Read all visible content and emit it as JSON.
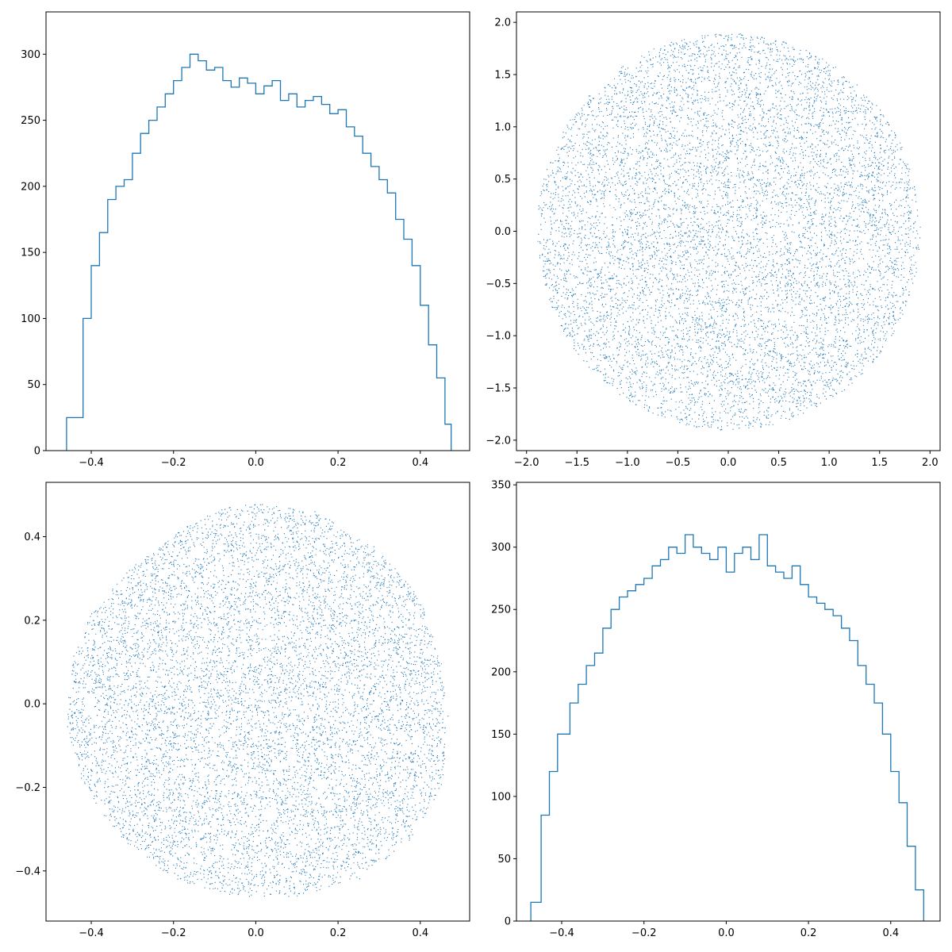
{
  "chart_data": [
    {
      "type": "step",
      "panel": "top-left",
      "title": "",
      "xlabel": "",
      "ylabel": "",
      "xlim": [
        -0.51,
        0.52
      ],
      "ylim": [
        0,
        332
      ],
      "xticks": [
        -0.4,
        -0.2,
        0.0,
        0.2,
        0.4
      ],
      "xtick_labels": [
        "−0.4",
        "−0.2",
        "0.0",
        "0.2",
        "0.4"
      ],
      "yticks": [
        0,
        50,
        100,
        150,
        200,
        250,
        300
      ],
      "ytick_labels": [
        "0",
        "50",
        "100",
        "150",
        "200",
        "250",
        "300"
      ],
      "color": "#1f77b4",
      "grid": false,
      "series": [
        {
          "x": [
            -0.46,
            -0.42,
            -0.4,
            -0.38,
            -0.36,
            -0.34,
            -0.32,
            -0.3,
            -0.28,
            -0.26,
            -0.24,
            -0.22,
            -0.2,
            -0.18,
            -0.16,
            -0.14,
            -0.12,
            -0.1,
            -0.08,
            -0.06,
            -0.04,
            -0.02,
            0.0,
            0.02,
            0.04,
            0.06,
            0.08,
            0.1,
            0.12,
            0.14,
            0.16,
            0.18,
            0.2,
            0.22,
            0.24,
            0.26,
            0.28,
            0.3,
            0.32,
            0.34,
            0.36,
            0.38,
            0.4,
            0.42,
            0.44,
            0.46,
            0.475
          ],
          "y": [
            25,
            100,
            140,
            165,
            190,
            200,
            205,
            225,
            240,
            250,
            260,
            270,
            280,
            290,
            300,
            295,
            288,
            290,
            280,
            275,
            282,
            278,
            270,
            276,
            280,
            265,
            270,
            260,
            265,
            268,
            262,
            255,
            258,
            245,
            238,
            225,
            215,
            205,
            195,
            175,
            160,
            140,
            110,
            80,
            55,
            20,
            0
          ]
        }
      ]
    },
    {
      "type": "scatter",
      "panel": "top-right",
      "title": "",
      "xlabel": "",
      "ylabel": "",
      "xlim": [
        -2.1,
        2.1
      ],
      "ylim": [
        -2.1,
        2.1
      ],
      "xticks": [
        -2.0,
        -1.5,
        -1.0,
        -0.5,
        0.0,
        0.5,
        1.0,
        1.5,
        2.0
      ],
      "xtick_labels": [
        "−2.0",
        "−1.5",
        "−1.0",
        "−0.5",
        "0.0",
        "0.5",
        "1.0",
        "1.5",
        "2.0"
      ],
      "yticks": [
        -2.0,
        -1.5,
        -1.0,
        -0.5,
        0.0,
        0.5,
        1.0,
        1.5,
        2.0
      ],
      "ytick_labels": [
        "−2.0",
        "−1.5",
        "−1.0",
        "−0.5",
        "0.0",
        "0.5",
        "1.0",
        "1.5",
        "2.0"
      ],
      "color": "#1f77b4",
      "grid": false,
      "shape": "uniform disk",
      "center": [
        0.0,
        0.0
      ],
      "radius": 1.9,
      "n_points": 9000
    },
    {
      "type": "scatter",
      "panel": "bottom-left",
      "title": "",
      "xlabel": "",
      "ylabel": "",
      "xlim": [
        -0.51,
        0.52
      ],
      "ylim": [
        -0.52,
        0.53
      ],
      "xticks": [
        -0.4,
        -0.2,
        0.0,
        0.2,
        0.4
      ],
      "xtick_labels": [
        "−0.4",
        "−0.2",
        "0.0",
        "0.2",
        "0.4"
      ],
      "yticks": [
        -0.4,
        -0.2,
        0.0,
        0.2,
        0.4
      ],
      "ytick_labels": [
        "−0.4",
        "−0.2",
        "0.0",
        "0.2",
        "0.4"
      ],
      "color": "#1f77b4",
      "grid": false,
      "shape": "rounded blob",
      "boundary": [
        [
          0.0,
          0.48
        ],
        [
          0.15,
          0.46
        ],
        [
          0.3,
          0.37
        ],
        [
          0.4,
          0.25
        ],
        [
          0.45,
          0.1
        ],
        [
          0.47,
          -0.05
        ],
        [
          0.45,
          -0.2
        ],
        [
          0.37,
          -0.33
        ],
        [
          0.25,
          -0.42
        ],
        [
          0.1,
          -0.46
        ],
        [
          -0.05,
          -0.46
        ],
        [
          -0.2,
          -0.42
        ],
        [
          -0.33,
          -0.32
        ],
        [
          -0.42,
          -0.2
        ],
        [
          -0.46,
          -0.05
        ],
        [
          -0.45,
          0.1
        ],
        [
          -0.4,
          0.22
        ],
        [
          -0.3,
          0.33
        ],
        [
          -0.18,
          0.42
        ],
        [
          -0.08,
          0.47
        ]
      ],
      "n_points": 9000
    },
    {
      "type": "step",
      "panel": "bottom-right",
      "title": "",
      "xlabel": "",
      "ylabel": "",
      "xlim": [
        -0.51,
        0.52
      ],
      "ylim": [
        0,
        352
      ],
      "xticks": [
        -0.4,
        -0.2,
        0.0,
        0.2,
        0.4
      ],
      "xtick_labels": [
        "−0.4",
        "−0.2",
        "0.0",
        "0.2",
        "0.4"
      ],
      "yticks": [
        0,
        50,
        100,
        150,
        200,
        250,
        300,
        350
      ],
      "ytick_labels": [
        "0",
        "50",
        "100",
        "150",
        "200",
        "250",
        "300",
        "350"
      ],
      "color": "#1f77b4",
      "grid": false,
      "series": [
        {
          "x": [
            -0.475,
            -0.45,
            -0.43,
            -0.41,
            -0.38,
            -0.36,
            -0.34,
            -0.32,
            -0.3,
            -0.28,
            -0.26,
            -0.24,
            -0.22,
            -0.2,
            -0.18,
            -0.16,
            -0.14,
            -0.12,
            -0.1,
            -0.08,
            -0.06,
            -0.04,
            -0.02,
            0.0,
            0.02,
            0.04,
            0.06,
            0.08,
            0.1,
            0.12,
            0.14,
            0.16,
            0.18,
            0.2,
            0.22,
            0.24,
            0.26,
            0.28,
            0.3,
            0.32,
            0.34,
            0.36,
            0.38,
            0.4,
            0.42,
            0.44,
            0.46,
            0.48
          ],
          "y": [
            15,
            85,
            120,
            150,
            175,
            190,
            205,
            215,
            235,
            250,
            260,
            265,
            270,
            275,
            285,
            290,
            300,
            295,
            310,
            300,
            295,
            290,
            300,
            280,
            295,
            300,
            290,
            310,
            285,
            280,
            275,
            285,
            270,
            260,
            255,
            250,
            245,
            235,
            225,
            205,
            190,
            175,
            150,
            120,
            95,
            60,
            25,
            0
          ]
        }
      ]
    }
  ]
}
